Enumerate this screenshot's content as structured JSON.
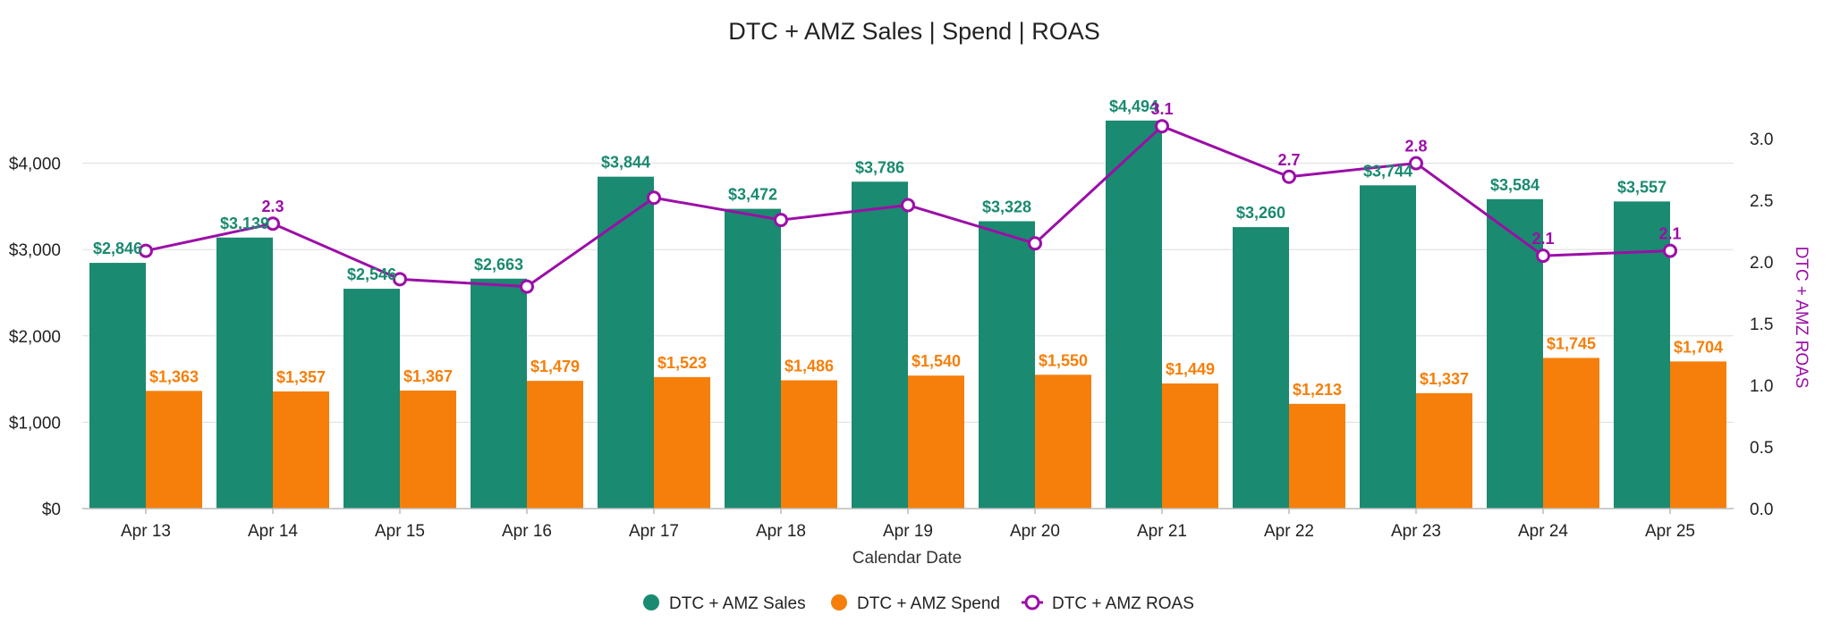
{
  "chart_data": {
    "type": "bar",
    "title": "DTC + AMZ Sales | Spend | ROAS",
    "xlabel": "Calendar Date",
    "ylabel": "",
    "y2label": "DTC + AMZ ROAS",
    "categories": [
      "Apr 13",
      "Apr 14",
      "Apr 15",
      "Apr 16",
      "Apr 17",
      "Apr 18",
      "Apr 19",
      "Apr 20",
      "Apr 21",
      "Apr 22",
      "Apr 23",
      "Apr 24",
      "Apr 25"
    ],
    "ylim": [
      0,
      5000
    ],
    "y2lim": [
      0,
      3.5
    ],
    "y_ticks": [
      0,
      1000,
      2000,
      3000,
      4000
    ],
    "y_tick_labels": [
      "$0",
      "$1,000",
      "$2,000",
      "$3,000",
      "$4,000"
    ],
    "y2_ticks": [
      0,
      0.5,
      1,
      1.5,
      2,
      2.5,
      3
    ],
    "y2_tick_labels": [
      "0.0",
      "0.5",
      "1.0",
      "1.5",
      "2.0",
      "2.5",
      "3.0"
    ],
    "grid": true,
    "legend_position": "bottom-center",
    "series": [
      {
        "name": "DTC + AMZ Sales",
        "kind": "bar",
        "axis": "left",
        "color": "#1a8a70",
        "values": [
          2846,
          3139,
          2546,
          2663,
          3844,
          3472,
          3786,
          3328,
          4494,
          3260,
          3744,
          3584,
          3557
        ],
        "labels": [
          "$2,846",
          "$3,139",
          "$2,546",
          "$2,663",
          "$3,844",
          "$3,472",
          "$3,786",
          "$3,328",
          "$4,494",
          "$3,260",
          "$3,744",
          "$3,584",
          "$3,557"
        ]
      },
      {
        "name": "DTC + AMZ Spend",
        "kind": "bar",
        "axis": "left",
        "color": "#f57f0a",
        "values": [
          1363,
          1357,
          1367,
          1479,
          1523,
          1486,
          1540,
          1550,
          1449,
          1213,
          1337,
          1745,
          1704
        ],
        "labels": [
          "$1,363",
          "$1,357",
          "$1,367",
          "$1,479",
          "$1,523",
          "$1,486",
          "$1,540",
          "$1,550",
          "$1,449",
          "$1,213",
          "$1,337",
          "$1,745",
          "$1,704"
        ]
      },
      {
        "name": "DTC + AMZ ROAS",
        "kind": "line",
        "axis": "right",
        "color": "#9c0ea8",
        "values": [
          2.09,
          2.31,
          1.86,
          1.8,
          2.52,
          2.34,
          2.46,
          2.15,
          3.1,
          2.69,
          2.8,
          2.05,
          2.09
        ],
        "labels": [
          "",
          "2.3",
          "",
          "",
          "",
          "",
          "",
          "",
          "3.1",
          "2.7",
          "2.8",
          "2.1",
          "2.1"
        ]
      }
    ]
  }
}
